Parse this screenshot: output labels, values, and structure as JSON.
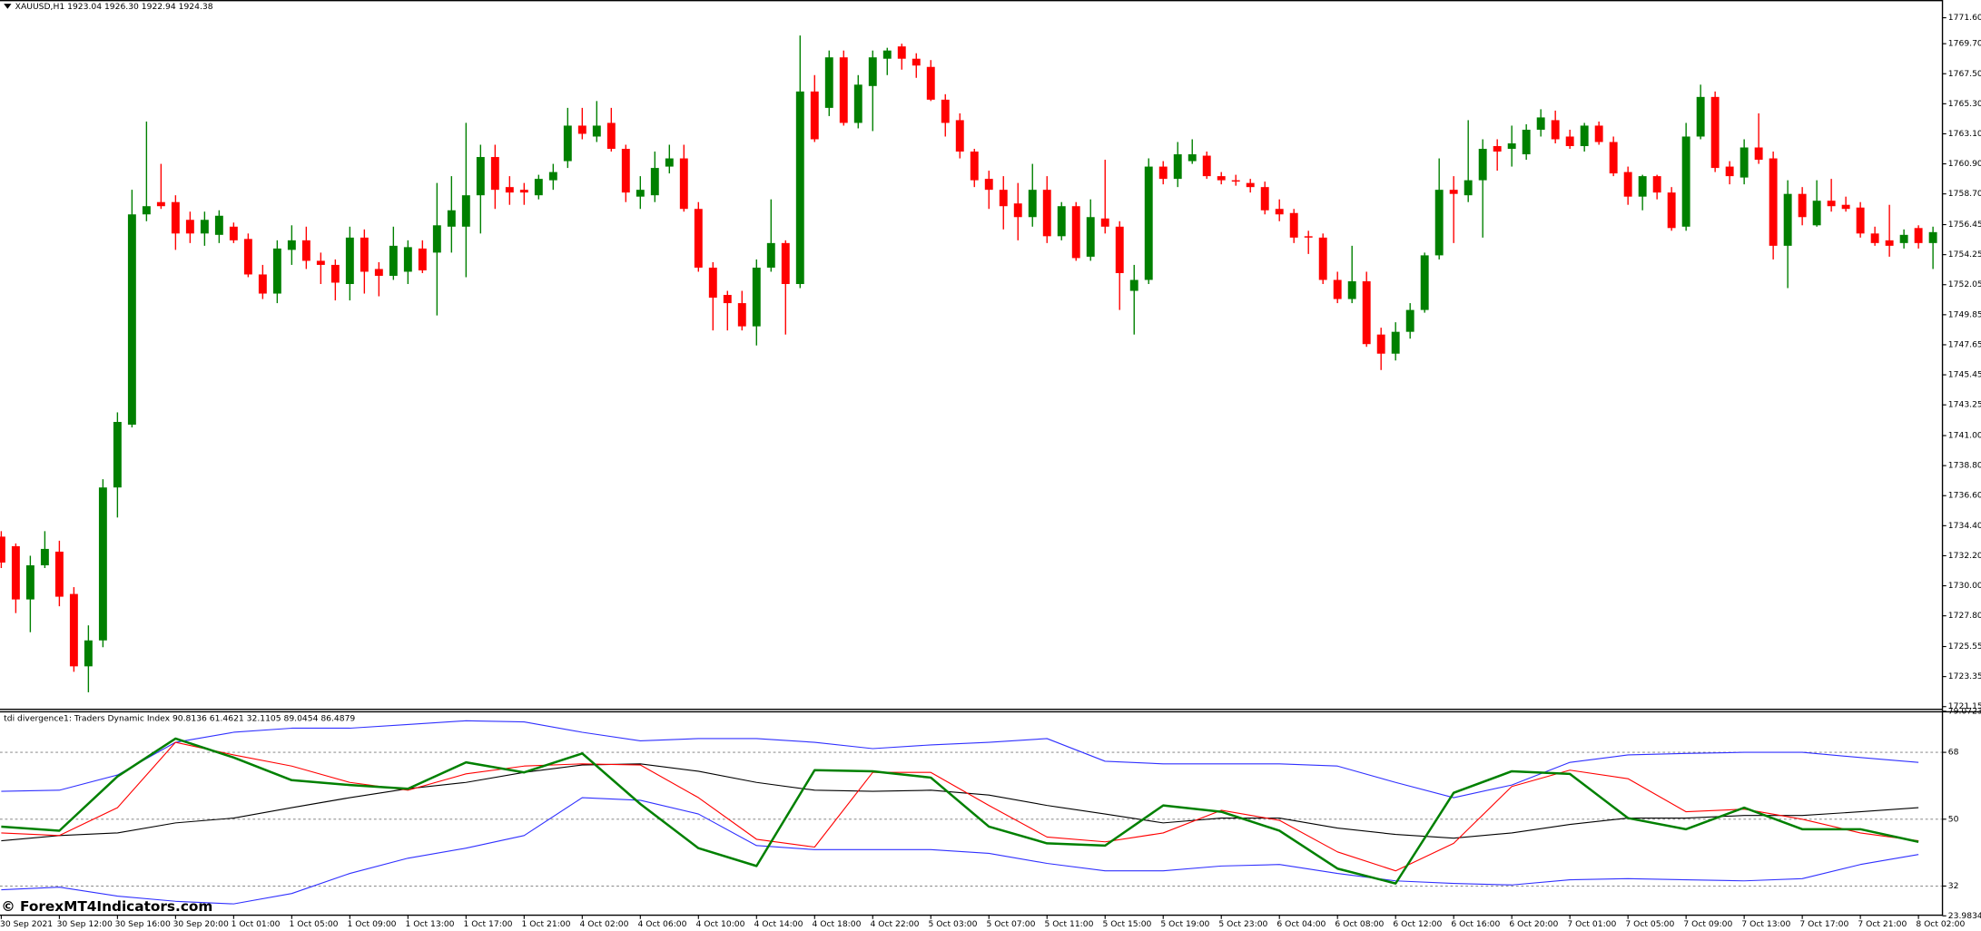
{
  "chart_data": [
    {
      "type": "candlestick",
      "title": "XAUUSD,H1 1923.04 1926.30 1922.94 1924.38",
      "up_color": "#008000",
      "down_color": "#ff0000",
      "categories": [
        "30 Sep 2021",
        null,
        null,
        null,
        "30 Sep 12:00",
        null,
        null,
        null,
        "30 Sep 16:00",
        null,
        null,
        null,
        "30 Sep 20:00",
        null,
        null,
        null,
        "1 Oct 01:00",
        null,
        null,
        null,
        "1 Oct 05:00",
        null,
        null,
        null,
        "1 Oct 09:00",
        null,
        null,
        null,
        "1 Oct 13:00",
        null,
        null,
        null,
        "1 Oct 17:00",
        null,
        null,
        null,
        "1 Oct 21:00",
        null,
        null,
        null,
        "4 Oct 02:00",
        null,
        null,
        null,
        "4 Oct 06:00",
        null,
        null,
        null,
        "4 Oct 10:00",
        null,
        null,
        null,
        "4 Oct 14:00",
        null,
        null,
        null,
        "4 Oct 18:00",
        null,
        null,
        null,
        "4 Oct 22:00",
        null,
        null,
        null,
        "5 Oct 03:00",
        null,
        null,
        null,
        "5 Oct 07:00",
        null,
        null,
        null,
        "5 Oct 11:00",
        null,
        null,
        null,
        "5 Oct 15:00",
        null,
        null,
        null,
        "5 Oct 19:00",
        null,
        null,
        null,
        "5 Oct 23:00",
        null,
        null,
        null,
        "6 Oct 04:00",
        null,
        null,
        null,
        "6 Oct 08:00",
        null,
        null,
        null,
        "6 Oct 12:00",
        null,
        null,
        null,
        "6 Oct 16:00",
        null,
        null,
        null,
        "6 Oct 20:00",
        null,
        null,
        null,
        "7 Oct 01:00",
        null,
        null,
        null,
        "7 Oct 05:00",
        null,
        null,
        null,
        "7 Oct 09:00",
        null,
        null,
        null,
        "7 Oct 13:00",
        null,
        null,
        null,
        "7 Oct 17:00",
        null,
        null,
        null,
        "7 Oct 21:00",
        null,
        null,
        null,
        "8 Oct 02:00",
        null
      ],
      "ohlc": [
        [
          1733.6,
          1734.0,
          1731.3,
          1731.7
        ],
        [
          1732.9,
          1733.1,
          1728.0,
          1729.0
        ],
        [
          1729.0,
          1732.2,
          1726.6,
          1731.5
        ],
        [
          1731.5,
          1734.0,
          1731.3,
          1732.7
        ],
        [
          1732.5,
          1733.3,
          1728.5,
          1729.2
        ],
        [
          1729.4,
          1729.9,
          1723.7,
          1724.1
        ],
        [
          1724.1,
          1727.1,
          1722.2,
          1726.0
        ],
        [
          1726.0,
          1737.8,
          1725.5,
          1737.2
        ],
        [
          1737.2,
          1742.7,
          1735.0,
          1742.0
        ],
        [
          1741.8,
          1759.0,
          1741.6,
          1757.2
        ],
        [
          1757.2,
          1764.0,
          1756.7,
          1757.8
        ],
        [
          1758.1,
          1760.9,
          1757.6,
          1757.8
        ],
        [
          1758.1,
          1758.6,
          1754.6,
          1755.8
        ],
        [
          1756.8,
          1757.4,
          1755.1,
          1755.8
        ],
        [
          1755.8,
          1757.4,
          1754.9,
          1756.8
        ],
        [
          1755.7,
          1757.5,
          1755.1,
          1757.1
        ],
        [
          1756.3,
          1756.6,
          1755.1,
          1755.3
        ],
        [
          1755.4,
          1755.8,
          1752.6,
          1752.8
        ],
        [
          1752.8,
          1753.5,
          1751.0,
          1751.4
        ],
        [
          1751.4,
          1755.3,
          1750.7,
          1754.7
        ],
        [
          1754.6,
          1756.4,
          1753.5,
          1755.3
        ],
        [
          1755.3,
          1756.3,
          1753.2,
          1753.8
        ],
        [
          1753.8,
          1754.4,
          1752.1,
          1753.5
        ],
        [
          1753.5,
          1753.9,
          1750.9,
          1752.2
        ],
        [
          1752.1,
          1756.3,
          1750.9,
          1755.5
        ],
        [
          1755.5,
          1756.1,
          1751.4,
          1753.0
        ],
        [
          1753.2,
          1753.7,
          1751.2,
          1752.7
        ],
        [
          1752.7,
          1756.3,
          1752.4,
          1754.9
        ],
        [
          1753.0,
          1755.3,
          1752.1,
          1754.8
        ],
        [
          1754.7,
          1755.3,
          1752.9,
          1753.1
        ],
        [
          1754.4,
          1759.5,
          1749.8,
          1756.4
        ],
        [
          1756.3,
          1760.0,
          1754.4,
          1757.5
        ],
        [
          1756.3,
          1763.9,
          1752.6,
          1758.6
        ],
        [
          1758.6,
          1762.3,
          1755.8,
          1761.4
        ],
        [
          1761.4,
          1762.3,
          1757.6,
          1759.0
        ],
        [
          1759.2,
          1760.0,
          1757.9,
          1758.8
        ],
        [
          1759.0,
          1759.5,
          1757.9,
          1758.8
        ],
        [
          1758.6,
          1760.1,
          1758.3,
          1759.8
        ],
        [
          1759.7,
          1760.9,
          1759.0,
          1760.3
        ],
        [
          1761.1,
          1765.0,
          1760.6,
          1763.7
        ],
        [
          1763.7,
          1765.0,
          1762.7,
          1763.1
        ],
        [
          1762.9,
          1765.5,
          1762.5,
          1763.7
        ],
        [
          1763.9,
          1765.0,
          1761.8,
          1762.0
        ],
        [
          1762.0,
          1762.3,
          1758.1,
          1758.8
        ],
        [
          1758.5,
          1760.0,
          1757.6,
          1759.0
        ],
        [
          1758.6,
          1761.8,
          1758.1,
          1760.6
        ],
        [
          1760.7,
          1762.3,
          1760.2,
          1761.3
        ],
        [
          1761.3,
          1762.3,
          1757.4,
          1757.6
        ],
        [
          1757.6,
          1758.1,
          1753.0,
          1753.3
        ],
        [
          1753.3,
          1753.7,
          1748.7,
          1751.1
        ],
        [
          1751.3,
          1751.6,
          1748.7,
          1750.7
        ],
        [
          1750.7,
          1751.6,
          1748.7,
          1749.0
        ],
        [
          1749.0,
          1753.9,
          1747.6,
          1753.3
        ],
        [
          1753.3,
          1758.3,
          1753.0,
          1755.1
        ],
        [
          1755.1,
          1755.3,
          1748.4,
          1752.1
        ],
        [
          1752.1,
          1770.3,
          1751.8,
          1766.2
        ],
        [
          1766.2,
          1767.4,
          1762.5,
          1762.7
        ],
        [
          1765.0,
          1769.2,
          1764.4,
          1768.7
        ],
        [
          1768.7,
          1769.2,
          1763.7,
          1763.9
        ],
        [
          1763.9,
          1767.4,
          1763.5,
          1766.7
        ],
        [
          1766.6,
          1769.2,
          1763.3,
          1768.7
        ],
        [
          1768.6,
          1769.4,
          1767.4,
          1769.2
        ],
        [
          1769.5,
          1769.7,
          1767.8,
          1768.6
        ],
        [
          1768.6,
          1769.0,
          1767.2,
          1768.1
        ],
        [
          1768.0,
          1768.5,
          1765.5,
          1765.6
        ],
        [
          1765.6,
          1766.0,
          1762.9,
          1763.9
        ],
        [
          1764.1,
          1764.6,
          1761.3,
          1761.8
        ],
        [
          1761.8,
          1762.0,
          1759.2,
          1759.7
        ],
        [
          1759.8,
          1760.4,
          1757.6,
          1759.0
        ],
        [
          1759.0,
          1760.0,
          1756.1,
          1757.8
        ],
        [
          1758.0,
          1759.5,
          1755.3,
          1757.0
        ],
        [
          1757.0,
          1760.9,
          1756.3,
          1759.0
        ],
        [
          1759.0,
          1760.0,
          1755.1,
          1755.6
        ],
        [
          1755.6,
          1758.1,
          1755.3,
          1757.8
        ],
        [
          1757.8,
          1758.1,
          1753.8,
          1754.0
        ],
        [
          1754.1,
          1758.3,
          1753.8,
          1757.0
        ],
        [
          1756.9,
          1761.2,
          1755.8,
          1756.3
        ],
        [
          1756.3,
          1756.7,
          1750.2,
          1752.9
        ],
        [
          1751.6,
          1753.5,
          1748.4,
          1752.4
        ],
        [
          1752.4,
          1761.3,
          1752.1,
          1760.7
        ],
        [
          1760.7,
          1761.1,
          1759.4,
          1759.8
        ],
        [
          1759.8,
          1762.5,
          1759.2,
          1761.6
        ],
        [
          1761.1,
          1762.7,
          1760.9,
          1761.6
        ],
        [
          1761.5,
          1761.8,
          1759.8,
          1760.0
        ],
        [
          1760.0,
          1760.3,
          1759.4,
          1759.7
        ],
        [
          1759.7,
          1760.1,
          1759.3,
          1759.6
        ],
        [
          1759.5,
          1759.8,
          1758.8,
          1759.2
        ],
        [
          1759.2,
          1759.6,
          1757.2,
          1757.5
        ],
        [
          1757.6,
          1758.3,
          1756.7,
          1757.2
        ],
        [
          1757.3,
          1757.6,
          1755.1,
          1755.5
        ],
        [
          1755.6,
          1756.0,
          1754.3,
          1755.5
        ],
        [
          1755.5,
          1755.8,
          1752.1,
          1752.4
        ],
        [
          1752.4,
          1753.0,
          1750.7,
          1751.0
        ],
        [
          1751.0,
          1754.9,
          1750.7,
          1752.3
        ],
        [
          1752.3,
          1753.0,
          1747.5,
          1747.7
        ],
        [
          1748.4,
          1748.9,
          1745.8,
          1747.0
        ],
        [
          1747.0,
          1749.3,
          1746.5,
          1748.6
        ],
        [
          1748.6,
          1750.7,
          1748.1,
          1750.2
        ],
        [
          1750.2,
          1754.4,
          1750.0,
          1754.2
        ],
        [
          1754.2,
          1761.3,
          1753.9,
          1759.0
        ],
        [
          1759.0,
          1760.0,
          1755.1,
          1758.7
        ],
        [
          1758.6,
          1764.1,
          1758.1,
          1759.7
        ],
        [
          1759.7,
          1762.7,
          1755.5,
          1762.0
        ],
        [
          1762.2,
          1762.7,
          1760.4,
          1761.8
        ],
        [
          1762.0,
          1763.7,
          1760.7,
          1762.4
        ],
        [
          1761.6,
          1763.8,
          1761.2,
          1763.4
        ],
        [
          1763.4,
          1764.9,
          1762.9,
          1764.3
        ],
        [
          1764.1,
          1764.8,
          1762.4,
          1762.7
        ],
        [
          1762.9,
          1763.4,
          1762.0,
          1762.2
        ],
        [
          1762.2,
          1763.9,
          1761.8,
          1763.7
        ],
        [
          1763.7,
          1764.0,
          1762.3,
          1762.5
        ],
        [
          1762.5,
          1762.9,
          1760.0,
          1760.2
        ],
        [
          1760.3,
          1760.7,
          1757.9,
          1758.5
        ],
        [
          1758.5,
          1760.1,
          1757.5,
          1760.0
        ],
        [
          1760.0,
          1760.1,
          1758.3,
          1758.8
        ],
        [
          1758.8,
          1759.2,
          1756.0,
          1756.2
        ],
        [
          1756.3,
          1763.9,
          1756.0,
          1762.9
        ],
        [
          1762.9,
          1766.7,
          1762.7,
          1765.8
        ],
        [
          1765.8,
          1766.2,
          1760.3,
          1760.6
        ],
        [
          1760.7,
          1761.1,
          1759.4,
          1760.0
        ],
        [
          1759.9,
          1762.7,
          1759.4,
          1762.1
        ],
        [
          1762.1,
          1764.6,
          1760.9,
          1761.2
        ],
        [
          1761.3,
          1761.8,
          1753.9,
          1754.9
        ],
        [
          1754.9,
          1759.7,
          1751.8,
          1758.7
        ],
        [
          1758.7,
          1759.2,
          1756.4,
          1757.0
        ],
        [
          1756.4,
          1759.7,
          1756.3,
          1758.2
        ],
        [
          1758.2,
          1759.8,
          1757.4,
          1757.8
        ],
        [
          1757.9,
          1758.5,
          1757.4,
          1757.6
        ],
        [
          1757.7,
          1758.1,
          1755.5,
          1755.8
        ],
        [
          1755.8,
          1756.3,
          1754.9,
          1755.1
        ],
        [
          1755.3,
          1757.9,
          1754.1,
          1754.9
        ],
        [
          1755.1,
          1756.1,
          1754.7,
          1755.7
        ],
        [
          1756.2,
          1756.4,
          1754.7,
          1755.1
        ],
        [
          1755.1,
          1756.3,
          1753.2,
          1755.9
        ]
      ],
      "ylim": [
        1721.0,
        1772.9
      ],
      "yticks": [
        {
          "value": 1771.6,
          "label": "1771.60"
        },
        {
          "value": 1769.7,
          "label": "1769.70"
        },
        {
          "value": 1767.5,
          "label": "1767.50"
        },
        {
          "value": 1765.3,
          "label": "1765.30"
        },
        {
          "value": 1763.1,
          "label": "1763.10"
        },
        {
          "value": 1760.9,
          "label": "1760.90"
        },
        {
          "value": 1758.7,
          "label": "1758.70"
        },
        1756.45,
        1754.25,
        1752.05,
        1749.85,
        1747.65,
        1745.45,
        1743.25,
        {
          "value": 1741,
          "label": "1741.00"
        },
        {
          "value": 1738.8,
          "label": "1738.80"
        },
        {
          "value": 1736.6,
          "label": "1736.60"
        },
        {
          "value": 1734.4,
          "label": "1734.40"
        },
        {
          "value": 1732.2,
          "label": "1732.20"
        },
        {
          "value": 1730,
          "label": "1730.00"
        },
        {
          "value": 1727.8,
          "label": "1727.80"
        },
        1725.55,
        1723.35,
        1721.15
      ]
    },
    {
      "type": "line",
      "title": "tdi divergence1: Traders Dynamic Index 90.8136 61.4621 32.1105 89.0454 86.4879",
      "series": [
        {
          "color": "#3030ff",
          "values": [
            57.5,
            57.8,
            61.9,
            70.7,
            73.4,
            74.5,
            74.5,
            75.5,
            76.5,
            76.2,
            73.4,
            71.1,
            71.7,
            71.7,
            70.7,
            69.0,
            70.0,
            70.7,
            71.7,
            65.6,
            64.9,
            64.9,
            64.9,
            64.3,
            59.9,
            55.8,
            59.2,
            65.3,
            67.3,
            67.7,
            68.0,
            68.0,
            66.6,
            65.3
          ]
        },
        {
          "color": "#3030ff",
          "values": [
            31.0,
            31.7,
            29.3,
            27.9,
            27.2,
            30.0,
            35.4,
            39.5,
            42.2,
            45.6,
            55.8,
            55.1,
            51.4,
            42.9,
            41.8,
            41.8,
            41.8,
            40.8,
            38.1,
            36.1,
            36.1,
            37.4,
            37.8,
            35.4,
            33.4,
            32.7,
            32.3,
            33.7,
            34.0,
            33.7,
            33.4,
            34.0,
            37.8,
            40.5
          ]
        },
        {
          "color": "#000000",
          "values": [
            44.2,
            45.6,
            46.3,
            49.0,
            50.3,
            53.1,
            55.8,
            58.2,
            59.9,
            62.6,
            64.6,
            64.9,
            62.9,
            59.9,
            57.8,
            57.5,
            57.8,
            56.5,
            53.7,
            51.4,
            49.0,
            50.3,
            50.3,
            47.6,
            45.9,
            44.9,
            46.3,
            48.6,
            50.3,
            50.3,
            51.0,
            51.0,
            52.0,
            53.1
          ]
        },
        {
          "color": "#ff0000",
          "values": [
            46.3,
            45.6,
            53.1,
            70.7,
            67.3,
            64.3,
            59.9,
            57.8,
            62.2,
            64.3,
            64.9,
            64.6,
            55.8,
            44.6,
            42.5,
            62.6,
            62.6,
            53.7,
            45.2,
            43.9,
            46.3,
            52.4,
            49.7,
            41.2,
            36.1,
            43.5,
            58.8,
            63.2,
            60.9,
            52.0,
            52.7,
            50.0,
            46.3,
            44.2
          ]
        },
        {
          "color": "#008000",
          "values": [
            48.0,
            46.9,
            61.5,
            71.7,
            66.6,
            60.5,
            59.2,
            58.2,
            65.3,
            62.6,
            67.7,
            54.1,
            42.2,
            37.4,
            63.2,
            62.9,
            61.2,
            48.0,
            43.5,
            42.9,
            53.7,
            52.0,
            46.9,
            36.7,
            32.7,
            57.1,
            62.9,
            62.2,
            50.3,
            47.3,
            53.1,
            47.3,
            47.3,
            43.9
          ]
        }
      ],
      "levels": [
        68,
        50,
        32
      ],
      "ylim": [
        23.9834,
        79.0723
      ],
      "yticks": [
        79.0723,
        68,
        50,
        32,
        23.9834
      ]
    }
  ],
  "watermark": "© ForexMT4Indicators.com"
}
